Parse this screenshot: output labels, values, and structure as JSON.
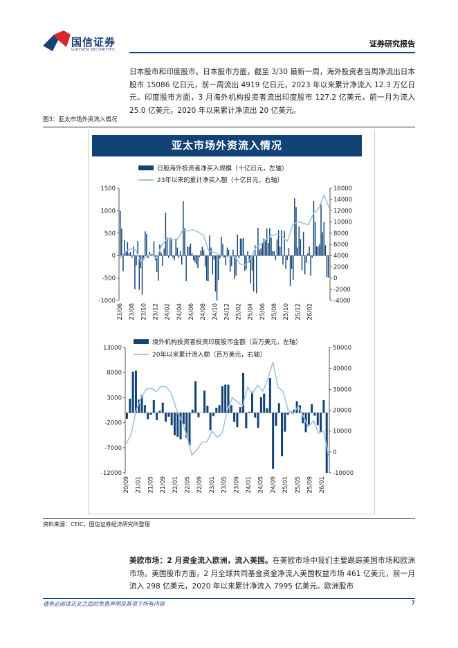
{
  "header": {
    "brand_cn": "国信证券",
    "brand_en": "GUOSEN SECURITIES",
    "report_type": "证券研究报告"
  },
  "intro_paragraph": "日本股市和印度股市。日本股市方面，截至 3/30 最新一周，海外投资者当周净流出日本股市 15086 亿日元，前一周流出 4919 亿日元，2023 年以来累计净流入 12.3 万亿日元。印度股市方面，3 月海外机构投资者流出印度股市 127.2 亿美元，前一月为流入 25.0 亿美元，2020 年以来累计净流出 20 亿美元。",
  "figure": {
    "caption": "图3：亚太市场外资流入情况",
    "title": "亚太市场外资流入情况",
    "source": "资料来源：CEIC，国信证券经济研究所整理"
  },
  "colors": {
    "bar": "#114377",
    "line": "#9dc3e6",
    "brand": "#1a3f73"
  },
  "chart_data": [
    {
      "type": "bar+line",
      "legend": [
        "日股海外投资者净买入规模（十亿日元，左轴）",
        "23年以来的累计净买入额（十亿日元，右轴）"
      ],
      "left_ylim": [
        -1000,
        1500
      ],
      "left_ticks": [
        "1500",
        "1000",
        "500",
        "0",
        "-500",
        "-1000"
      ],
      "right_ylim": [
        -4000,
        16000
      ],
      "right_ticks": [
        "16000",
        "14000",
        "12000",
        "10000",
        "8000",
        "6000",
        "4000",
        "2000",
        "0",
        "-2000",
        "-4000"
      ],
      "x_ticks": [
        "23/06",
        "23/08",
        "23/10",
        "23/12",
        "24/02",
        "24/04",
        "24/06",
        "24/08",
        "24/10",
        "24/12",
        "25/02",
        "25/04",
        "25/06",
        "25/08",
        "25/10",
        "25/12",
        "26/02"
      ],
      "bars": [
        1000,
        600,
        -350,
        350,
        100,
        300,
        50,
        80,
        -50,
        200,
        -750,
        -220,
        330,
        -760,
        -280,
        -870,
        -100,
        540,
        480,
        -60,
        80,
        50,
        30,
        320,
        -100,
        -370,
        -560,
        250,
        60,
        -230,
        160,
        960,
        400,
        -50,
        400,
        380,
        -50,
        -100,
        380,
        180,
        -50,
        100,
        -200,
        1220,
        610,
        -570,
        200,
        200,
        270,
        50,
        -100,
        -150,
        -200,
        -280,
        -30,
        110,
        200,
        120,
        -240,
        -560,
        -570,
        450,
        180,
        -420,
        -90,
        -800,
        -1000,
        -550,
        -60,
        420,
        260,
        -50,
        -220,
        180,
        130,
        -360,
        -230,
        130,
        -520,
        -450,
        470,
        -60,
        380,
        380,
        390,
        -340,
        -300,
        100,
        -150,
        -620,
        -330,
        -800,
        230,
        -840,
        620,
        130,
        160,
        300,
        380,
        360,
        600,
        280,
        610,
        400,
        100,
        100,
        -100,
        360,
        570,
        200,
        570,
        -200,
        550,
        -300,
        -100,
        170,
        -680,
        -300,
        -540,
        1280,
        1080,
        180,
        650,
        370,
        -330,
        530,
        -420,
        -160,
        50,
        200,
        -450,
        -50,
        1220,
        760,
        210,
        200,
        250,
        1140,
        520,
        750,
        230,
        -480,
        -490
      ],
      "line": [
        3500,
        4600,
        5200,
        5100,
        3000,
        3800,
        4300,
        3500,
        5800,
        7000,
        6800,
        6800,
        8500,
        8400,
        8600,
        8200,
        7600,
        4800,
        4600,
        4200,
        3600,
        4000,
        3800,
        2500,
        2300,
        3500,
        5500,
        6000,
        7000,
        7600,
        7800,
        7500,
        6500,
        9500,
        10000,
        9800,
        9500,
        11500,
        12500,
        14800,
        12500
      ]
    },
    {
      "type": "bar+line",
      "legend": [
        "境外机构投资者投资印度股市金额（百万美元，左轴）",
        "20年以来累计流入额（百万美元，右轴）"
      ],
      "left_ylim": [
        -12000,
        13000
      ],
      "left_ticks": [
        "13000",
        "8000",
        "3000",
        "-2000",
        "-7000",
        "-12000"
      ],
      "right_ylim": [
        -10000,
        50000
      ],
      "right_ticks": [
        "50000",
        "40000",
        "30000",
        "20000",
        "10000",
        "0",
        "-10000"
      ],
      "x_ticks": [
        "20/09",
        "21/01",
        "21/05",
        "21/09",
        "22/01",
        "22/05",
        "22/09",
        "23/01",
        "23/05",
        "23/09",
        "24/01",
        "24/05",
        "24/09",
        "25/01",
        "25/05",
        "25/09",
        "26/01"
      ],
      "bars": [
        -1200,
        2800,
        8200,
        8400,
        2600,
        3500,
        1500,
        -1300,
        -400,
        2500,
        -1500,
        400,
        2000,
        -1800,
        -800,
        -2500,
        -4500,
        -4800,
        -5300,
        -2300,
        -5000,
        -6500,
        600,
        6300,
        -900,
        0,
        4400,
        1400,
        -3500,
        -700,
        1000,
        1500,
        5300,
        5600,
        5600,
        1500,
        -1800,
        -2900,
        1100,
        7900,
        -3100,
        200,
        4200,
        -1000,
        -3000,
        3100,
        3800,
        900,
        6900,
        -11200,
        -2600,
        1900,
        -8700,
        -3800,
        -400,
        200,
        600,
        2300,
        1500,
        -2100,
        -3900,
        -2400,
        1700,
        -600,
        -2500,
        -3900,
        2500,
        -12000
      ],
      "line": [
        4000,
        8000,
        20000,
        26000,
        30000,
        30500,
        29000,
        31500,
        31000,
        28000,
        20000,
        15000,
        8000,
        -1500,
        1000,
        4500,
        5000,
        10000,
        7000,
        9000,
        20000,
        26000,
        24000,
        22000,
        31000,
        28000,
        32000,
        29000,
        35000,
        43000,
        31000,
        29000,
        20000,
        18000,
        22000,
        17000,
        12000,
        15000,
        9000,
        10000,
        -2000
      ]
    }
  ],
  "section_paragraph": {
    "lead": "美欧市场：2 月资金流入欧洲，流入美国。",
    "text": "在美欧市场中我们主要跟踪美国市场和欧洲市场。美国股市方面，2 月全球共同基金资金净流入美国权益市场 461 亿美元，前一月流入 298 亿美元，2020 年以来累计净流入 7995 亿美元。欧洲股市"
  },
  "footer": {
    "disclaimer": "请务必阅读正文之后的免责声明及其项下所有内容",
    "page": "7"
  }
}
